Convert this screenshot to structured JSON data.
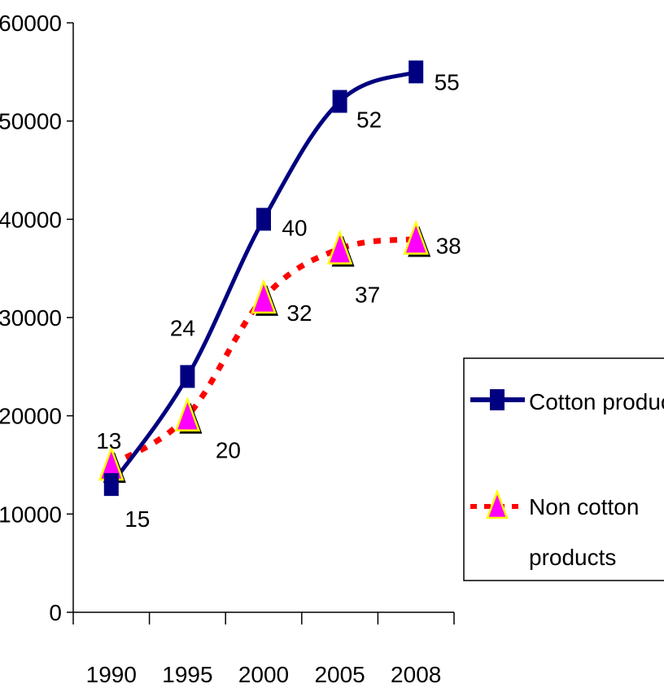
{
  "chart_data": {
    "type": "line",
    "categories": [
      "1990",
      "1995",
      "2000",
      "2005",
      "2008"
    ],
    "ylim": [
      0,
      60000
    ],
    "yticks": [
      "0",
      "10000",
      "20000",
      "30000",
      "40000",
      "50000",
      "60000"
    ],
    "series": [
      {
        "name": "Cotton products",
        "values": [
          13000,
          24000,
          40000,
          52000,
          55000
        ],
        "labels": [
          "13",
          "24",
          "40",
          "52",
          "55"
        ],
        "color": "#000080",
        "style": "solid",
        "marker": "square"
      },
      {
        "name": "Non cotton products",
        "values": [
          15000,
          20000,
          32000,
          37000,
          38000
        ],
        "labels": [
          "15",
          "20",
          "32",
          "37",
          "38"
        ],
        "color": "#FF0000",
        "marker_fill": "#FF00FF",
        "marker_stroke": "#FFFF00",
        "style": "dotted",
        "marker": "triangle"
      }
    ],
    "legend": {
      "position": "right",
      "entries": [
        "Cotton products",
        "Non cotton",
        "products"
      ]
    },
    "grid": false
  }
}
